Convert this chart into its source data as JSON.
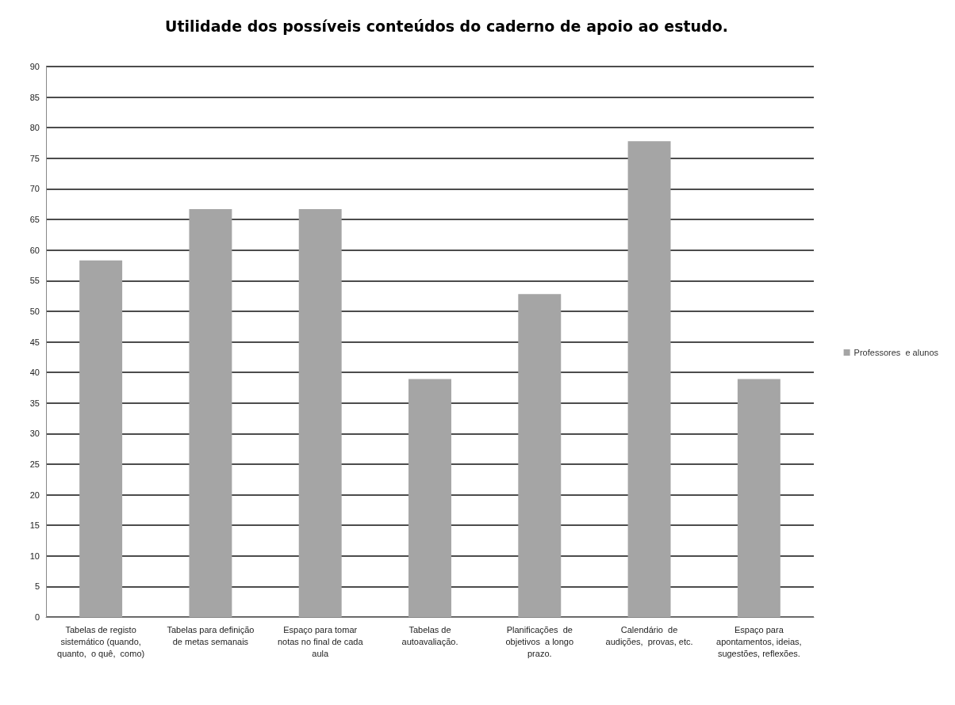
{
  "chart_data": {
    "type": "bar",
    "title": "Utilidade dos possíveis conteúdos do caderno de apoio ao estudo.",
    "categories": [
      "Tabelas de registo\nsistemático (quando,\nquanto,  o quê,  como)",
      "Tabelas para definição\nde metas semanais",
      "Espaço para tomar\nnotas no final de cada\naula",
      "Tabelas de\nautoavaliação.",
      "Planificações  de\nobjetivos  a longo\nprazo.",
      "Calendário  de\naudições,  provas, etc.",
      "Espaço para\napontamentos, ideias,\nsugestões, reflexões."
    ],
    "series": [
      {
        "name": "Professores  e alunos",
        "color": "#a5a5a5",
        "values": [
          58.3,
          66.7,
          66.7,
          38.9,
          52.8,
          77.8,
          38.9
        ]
      }
    ],
    "ylim": [
      0,
      90
    ],
    "yticks": [
      0,
      5,
      10,
      15,
      20,
      25,
      30,
      35,
      40,
      45,
      50,
      55,
      60,
      65,
      70,
      75,
      80,
      85,
      90
    ],
    "grid": "y",
    "legend": "right"
  }
}
